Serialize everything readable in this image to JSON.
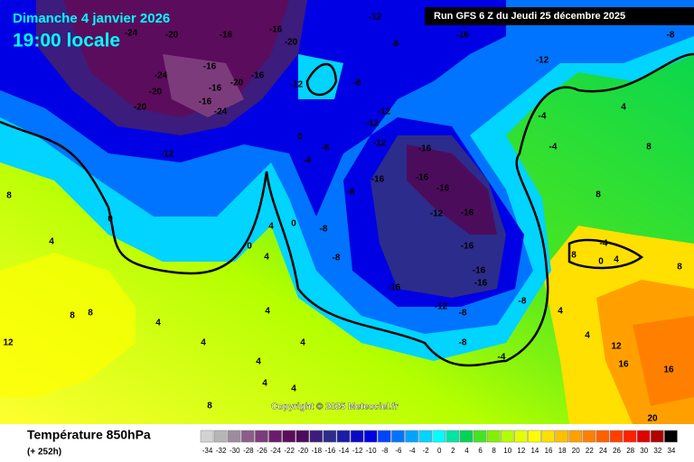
{
  "header": {
    "date": "Dimanche 4 janvier 2026",
    "time": "19:00 locale",
    "run": "Run GFS 6 Z du Jeudi 25 décembre 2025"
  },
  "copyright": "Copyright © 2025 Meteociel.fr",
  "footer": {
    "title": "Température 850hPa",
    "lead": "(+ 252h)"
  },
  "legend": {
    "ticks": [
      -34,
      -32,
      -30,
      -28,
      -26,
      -24,
      -22,
      -20,
      -18,
      -16,
      -14,
      -12,
      -10,
      -8,
      -6,
      -4,
      -2,
      0,
      2,
      4,
      6,
      8,
      10,
      12,
      14,
      16,
      18,
      20,
      22,
      24,
      26,
      28,
      30,
      32,
      34
    ],
    "colors": [
      "#d2d2d2",
      "#b6b6b6",
      "#9c8c9c",
      "#8c5c8c",
      "#7c3c7c",
      "#6c1c6c",
      "#5c0c5c",
      "#4c0c5c",
      "#3c1c7c",
      "#2c2c8c",
      "#1c1ca4",
      "#0a0ac4",
      "#0000e4",
      "#0044ff",
      "#0074ff",
      "#00a4ff",
      "#00d4ff",
      "#00ffff",
      "#00e4a4",
      "#00d454",
      "#44e424",
      "#84f000",
      "#b4ff00",
      "#e4ff00",
      "#ffff00",
      "#ffe000",
      "#ffc000",
      "#ffa000",
      "#ff8000",
      "#ff6000",
      "#ff4000",
      "#ff2000",
      "#e00000",
      "#b00000",
      "#000000"
    ]
  },
  "contour_labels": [
    -24,
    -20,
    -16,
    -16,
    -20,
    -12,
    -8,
    -16,
    -12,
    -8,
    -24,
    -16,
    -20,
    -16,
    -20,
    -16,
    -12,
    -20,
    -16,
    -24,
    -12,
    -8,
    -12,
    -12,
    -12,
    -8,
    -4,
    0,
    -4,
    -4,
    4,
    8,
    -16,
    -16,
    -16,
    -16,
    -16,
    -8,
    -12,
    -16,
    -8,
    -8,
    -16,
    -16,
    -16,
    -12,
    -8,
    -8,
    -8,
    -4,
    0,
    0,
    4,
    4,
    0,
    4,
    4,
    4,
    4,
    4,
    4,
    4,
    8,
    8,
    12,
    8,
    4,
    4,
    12,
    16,
    16,
    20,
    8,
    8,
    4,
    -4,
    0,
    8,
    8,
    4
  ]
}
